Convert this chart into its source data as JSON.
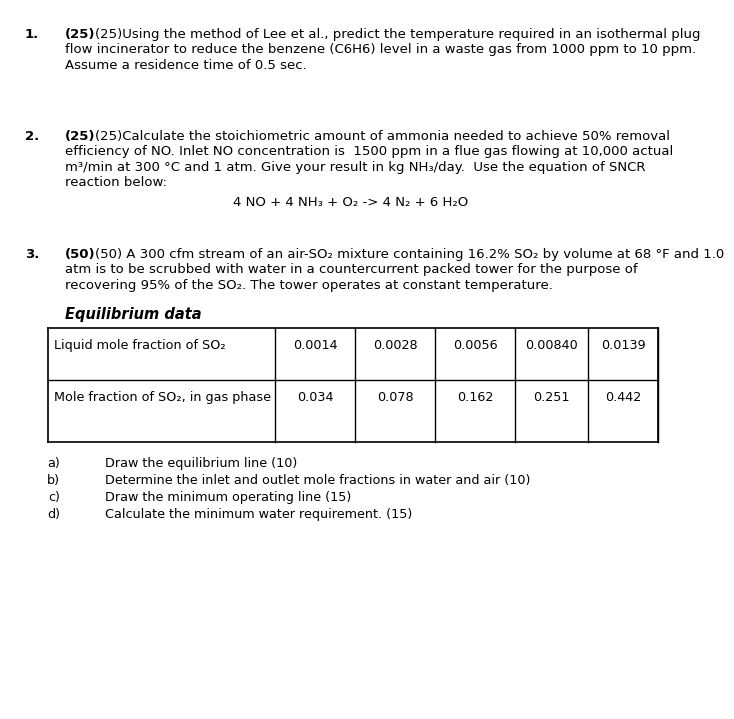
{
  "bg_color": "#ffffff",
  "q1_text_lines": [
    "(25)Using the method of Lee et al., predict the temperature required in an isothermal plug",
    "flow incinerator to reduce the benzene (C6H6) level in a waste gas from 1000 ppm to 10 ppm.",
    "Assume a residence time of 0.5 sec."
  ],
  "q2_text_lines": [
    "(25)Calculate the stoichiometric amount of ammonia needed to achieve 50% removal",
    "efficiency of NO. Inlet NO concentration is  1500 ppm in a flue gas flowing at 10,000 actual",
    "m³/min at 300 °C and 1 atm. Give your result in kg NH₃/day.  Use the equation of SNCR",
    "reaction below:"
  ],
  "q2_equation": "4 NO + 4 NH₃ + O₂ -> 4 N₂ + 6 H₂O",
  "q3_text_lines": [
    "(50) A 300 cfm stream of an air-SO₂ mixture containing 16.2% SO₂ by volume at 68 °F and 1.0",
    "atm is to be scrubbed with water in a countercurrent packed tower for the purpose of",
    "recovering 95% of the SO₂. The tower operates at constant temperature."
  ],
  "eq_data_label": "Equilibrium data",
  "table_row1_label": "Liquid mole fraction of SO₂",
  "table_row1_values": [
    "0.0014",
    "0.0028",
    "0.0056",
    "0.00840",
    "0.0139"
  ],
  "table_row2_label": "Mole fraction of SO₂, in gas phase",
  "table_row2_values": [
    "0.034",
    "0.078",
    "0.162",
    "0.251",
    "0.442"
  ],
  "sub_items": [
    [
      "a)",
      "Draw the equilibrium line (10)"
    ],
    [
      "b)",
      "Determine the inlet and outlet mole fractions in water and air (10)"
    ],
    [
      "c)",
      "Draw the minimum operating line (15)"
    ],
    [
      "d)",
      "Calculate the minimum water requirement. (15)"
    ]
  ]
}
